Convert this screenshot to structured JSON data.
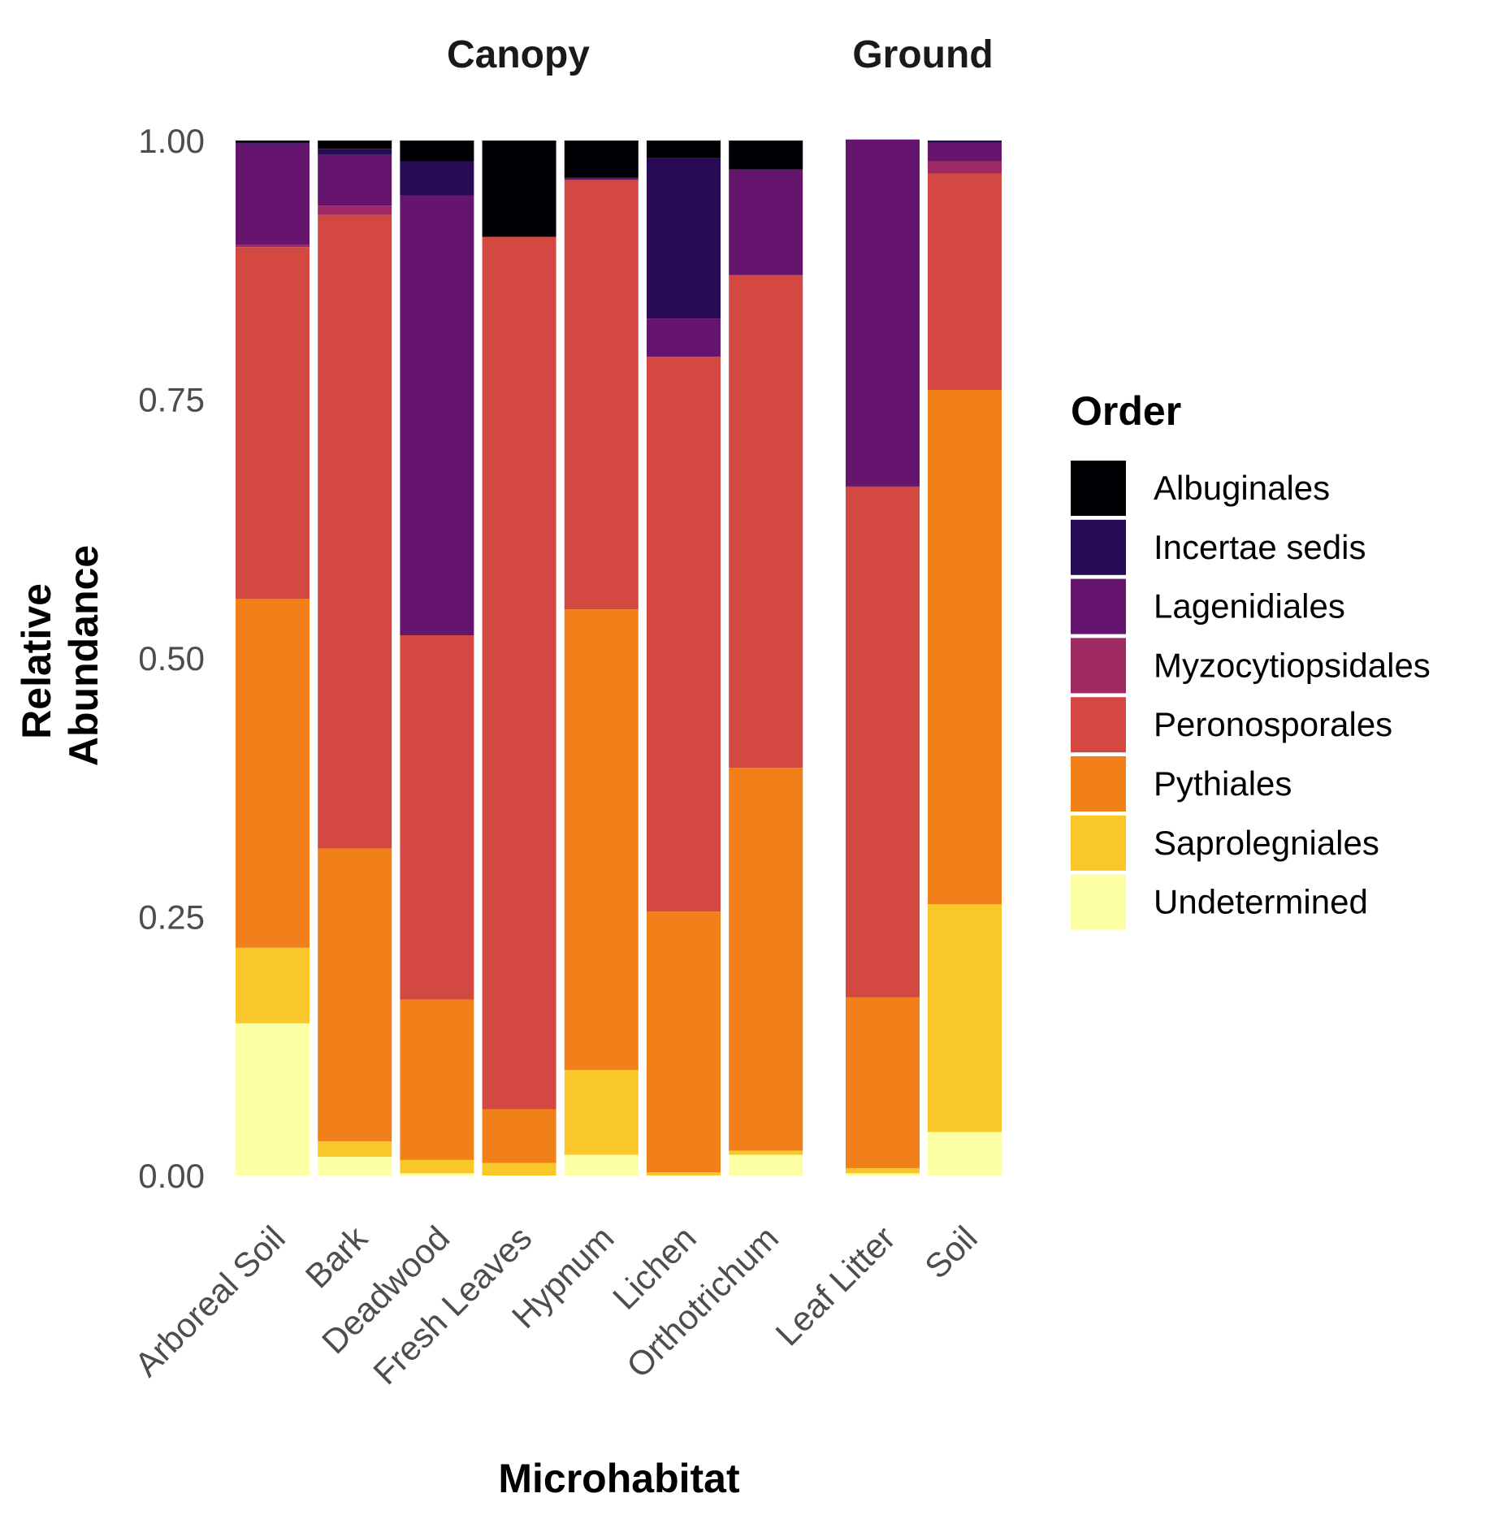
{
  "chart_data": {
    "type": "bar",
    "stacked": true,
    "normalized": true,
    "facets": [
      {
        "title": "Canopy",
        "categories": [
          "Arboreal Soil",
          "Bark",
          "Deadwood",
          "Fresh Leaves",
          "Hypnum",
          "Lichen",
          "Orthotrichum"
        ]
      },
      {
        "title": "Ground",
        "categories": [
          "Leaf Litter",
          "Soil"
        ]
      }
    ],
    "categories": [
      "Arboreal Soil",
      "Bark",
      "Deadwood",
      "Fresh Leaves",
      "Hypnum",
      "Lichen",
      "Orthotrichum",
      "Leaf Litter",
      "Soil"
    ],
    "series": [
      {
        "name": "Undetermined",
        "color": "#FCFFA4",
        "values": [
          0.147,
          0.018,
          0.002,
          0.0,
          0.02,
          0.0,
          0.02,
          0.002,
          0.042
        ]
      },
      {
        "name": "Saprolegniales",
        "color": "#F9C72A",
        "values": [
          0.073,
          0.015,
          0.013,
          0.012,
          0.082,
          0.003,
          0.004,
          0.005,
          0.22
        ]
      },
      {
        "name": "Pythiales",
        "color": "#F2801A",
        "values": [
          0.337,
          0.283,
          0.155,
          0.052,
          0.445,
          0.252,
          0.37,
          0.165,
          0.497
        ]
      },
      {
        "name": "Peronosporales",
        "color": "#D44842",
        "values": [
          0.34,
          0.612,
          0.352,
          0.843,
          0.415,
          0.536,
          0.476,
          0.493,
          0.209
        ]
      },
      {
        "name": "Myzocytiopsidales",
        "color": "#9F2A63",
        "values": [
          0.002,
          0.009,
          0.0,
          0.0,
          0.0,
          0.0,
          0.0,
          0.001,
          0.012
        ]
      },
      {
        "name": "Lagenidiales",
        "color": "#65156E",
        "values": [
          0.098,
          0.049,
          0.425,
          0.0,
          0.002,
          0.037,
          0.102,
          0.335,
          0.018
        ]
      },
      {
        "name": "Incertae sedis",
        "color": "#280B54",
        "values": [
          0.001,
          0.006,
          0.033,
          0.0,
          0.0,
          0.155,
          0.0,
          0.0,
          0.002
        ]
      },
      {
        "name": "Albuginales",
        "color": "#000004",
        "values": [
          0.002,
          0.008,
          0.02,
          0.093,
          0.036,
          0.017,
          0.028,
          0.0,
          0.0
        ]
      }
    ],
    "xlabel": "Microhabitat",
    "ylabel_lines": [
      "Relative",
      "Abundance"
    ],
    "ylim": [
      0,
      1
    ],
    "yticks": [
      "0.00",
      "0.25",
      "0.50",
      "0.75",
      "1.00"
    ],
    "grid": false,
    "legend": {
      "title": "Order",
      "placement": "right",
      "entries": [
        "Albuginales",
        "Incertae sedis",
        "Lagenidiales",
        "Myzocytiopsidales",
        "Peronosporales",
        "Pythiales",
        "Saprolegniales",
        "Undetermined"
      ]
    }
  }
}
